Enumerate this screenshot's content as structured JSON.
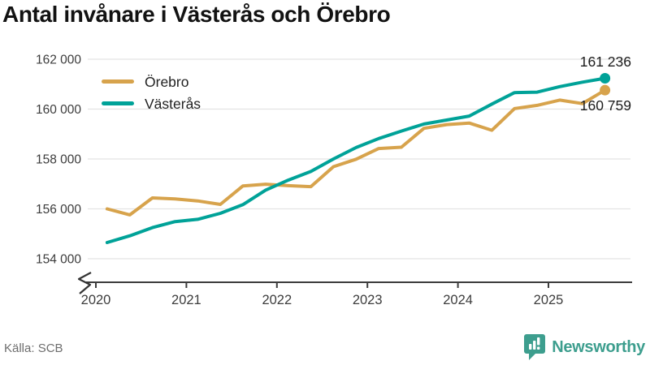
{
  "title": "Antal invånare i Västerås och Örebro",
  "footer": {
    "source": "Källa: SCB",
    "brand": "Newsworthy"
  },
  "chart_data": {
    "type": "line",
    "title": "Antal invånare i Västerås och Örebro",
    "categories": [
      "2020 Q1",
      "2020 Q2",
      "2020 Q3",
      "2020 Q4",
      "2021 Q1",
      "2021 Q2",
      "2021 Q3",
      "2021 Q4",
      "2022 Q1",
      "2022 Q2",
      "2022 Q3",
      "2022 Q4",
      "2023 Q1",
      "2023 Q2",
      "2023 Q3",
      "2023 Q4",
      "2024 Q1",
      "2024 Q2",
      "2024 Q3",
      "2024 Q4",
      "2025 Q1",
      "2025 Q2",
      "2025 Q3"
    ],
    "series": [
      {
        "id": "orebro",
        "name": "Örebro",
        "color": "#d7a34c",
        "values": [
          156000,
          155760,
          156440,
          156400,
          156320,
          156180,
          156920,
          156990,
          156930,
          156890,
          157690,
          157990,
          158420,
          158470,
          159230,
          159380,
          159440,
          159150,
          160020,
          160150,
          160360,
          160220,
          160759
        ]
      },
      {
        "id": "vasteras",
        "name": "Västerås",
        "color": "#00a298",
        "values": [
          154650,
          154920,
          155250,
          155490,
          155580,
          155820,
          156170,
          156750,
          157150,
          157500,
          158000,
          158460,
          158820,
          159120,
          159400,
          159560,
          159720,
          160200,
          160660,
          160680,
          160900,
          161080,
          161236
        ]
      }
    ],
    "end_labels": [
      {
        "series_id": "vasteras",
        "text": "161 236",
        "placement": "above"
      },
      {
        "series_id": "orebro",
        "text": "160 759",
        "placement": "below"
      }
    ],
    "x_ticks": [
      2020,
      2021,
      2022,
      2023,
      2024,
      2025
    ],
    "x_tick_labels": [
      "2020",
      "2021",
      "2022",
      "2023",
      "2024",
      "2025"
    ],
    "y_ticks": [
      162000,
      160000,
      158000,
      156000,
      154000
    ],
    "y_tick_labels": [
      "162 000",
      "160 000",
      "158 000",
      "156 000",
      "154 000"
    ],
    "ylim": [
      153600,
      162300
    ],
    "axis_break": true,
    "grid": "horizontal",
    "legend_position": "top-left",
    "colors": {
      "gridline": "#e3e3e3",
      "axis": "#3c3c3c",
      "tick_label": "#3c3c3c",
      "end_label": "#1c1c1c",
      "legend_label": "#222222"
    }
  }
}
